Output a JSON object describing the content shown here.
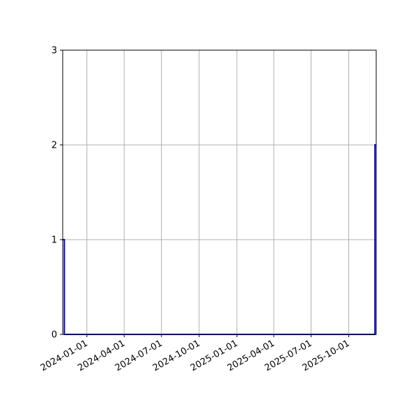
{
  "chart_data": {
    "type": "line",
    "drawstyle": "steps",
    "title": "",
    "xlabel": "",
    "ylabel": "",
    "xlim": [
      "2023-11-03",
      "2025-12-07"
    ],
    "ylim": [
      0,
      3
    ],
    "grid": true,
    "x_ticks": [
      "2024-01-01",
      "2024-04-01",
      "2024-07-01",
      "2024-10-01",
      "2025-01-01",
      "2025-04-01",
      "2025-07-01",
      "2025-10-01"
    ],
    "y_ticks": [
      "0",
      "1",
      "2",
      "3"
    ],
    "series": [
      {
        "color": "#0000cc",
        "x": [
          "2023-11-03",
          "2023-11-07",
          "2025-12-04",
          "2025-12-07"
        ],
        "y": [
          1,
          0,
          2,
          2
        ]
      }
    ]
  }
}
